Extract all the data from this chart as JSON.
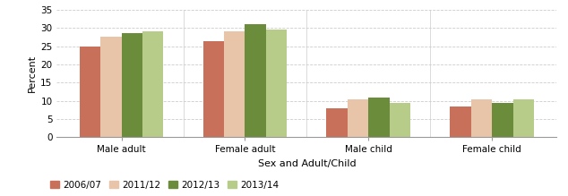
{
  "categories": [
    "Male adult",
    "Female adult",
    "Male child",
    "Female child"
  ],
  "series": {
    "2006/07": [
      25.0,
      26.5,
      8.0,
      8.5
    ],
    "2011/12": [
      27.5,
      29.0,
      10.5,
      10.5
    ],
    "2012/13": [
      28.5,
      31.0,
      11.0,
      9.5
    ],
    "2013/14": [
      29.0,
      29.5,
      9.5,
      10.5
    ]
  },
  "colors": {
    "2006/07": "#c8705a",
    "2011/12": "#e8c4a8",
    "2012/13": "#6b8c3a",
    "2013/14": "#b8cc8a"
  },
  "legend_labels": [
    "2006/07",
    "2011/12",
    "2012/13",
    "2013/14"
  ],
  "xlabel": "Sex and Adult/Child",
  "ylabel": "Percent",
  "ylim": [
    0,
    35
  ],
  "yticks": [
    0,
    5,
    10,
    15,
    20,
    25,
    30,
    35
  ],
  "bar_width": 0.17,
  "figsize": [
    6.34,
    2.19
  ],
  "dpi": 100,
  "grid_color": "#cccccc",
  "axis_color": "#999999"
}
